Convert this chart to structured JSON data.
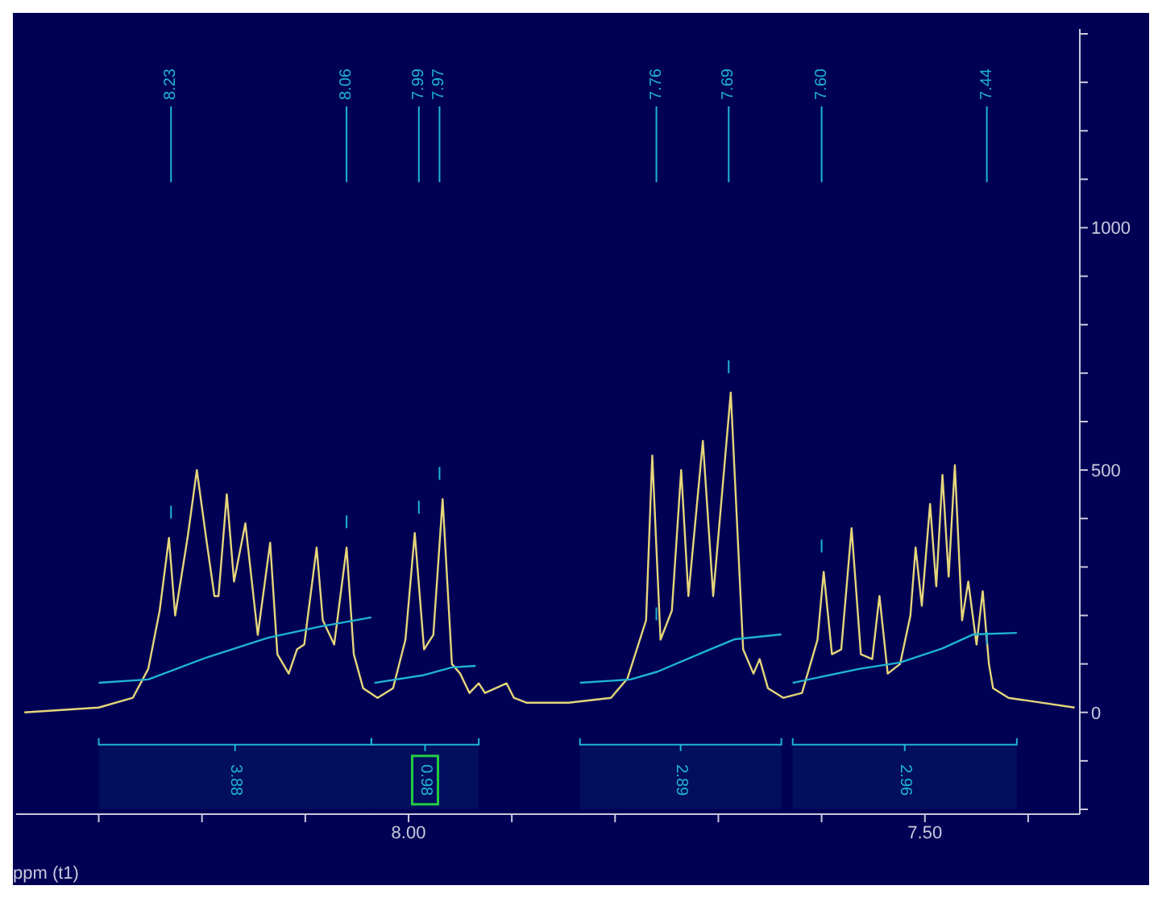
{
  "chart_data": {
    "type": "line",
    "xlabel": "ppm (t1)",
    "xlim": [
      8.38,
      7.35
    ],
    "ylim": [
      -210,
      1410
    ],
    "xticks": [
      {
        "value": 8.3,
        "label": null
      },
      {
        "value": 8.2,
        "label": null
      },
      {
        "value": 8.1,
        "label": null
      },
      {
        "value": 8,
        "label": "8.00"
      },
      {
        "value": 7.9,
        "label": null
      },
      {
        "value": 7.8,
        "label": null
      },
      {
        "value": 7.7,
        "label": null
      },
      {
        "value": 7.6,
        "label": null
      },
      {
        "value": 7.5,
        "label": "7.50"
      },
      {
        "value": 7.4,
        "label": null
      }
    ],
    "yticks": [
      {
        "value": -200,
        "label": null
      },
      {
        "value": -100,
        "label": null
      },
      0,
      {
        "value": 100,
        "label": null
      },
      {
        "value": 200,
        "label": null
      },
      {
        "value": 300,
        "label": null
      },
      {
        "value": 400,
        "label": null
      },
      500,
      {
        "value": 600,
        "label": null
      },
      {
        "value": 700,
        "label": null
      },
      {
        "value": 800,
        "label": null
      },
      {
        "value": 900,
        "label": null
      },
      1000,
      {
        "value": 1100,
        "label": null
      },
      {
        "value": 1200,
        "label": null
      },
      {
        "value": 1300,
        "label": null
      },
      {
        "value": 1400,
        "label": null
      }
    ],
    "grid": false,
    "marker": "none",
    "line_style": "solid",
    "series": [
      {
        "color": "#e6d67a",
        "x": [
          8.372,
          8.3,
          8.267,
          8.252,
          8.241,
          8.232,
          8.226,
          8.214,
          8.205,
          8.196,
          8.188,
          8.184,
          8.176,
          8.169,
          8.158,
          8.146,
          8.134,
          8.127,
          8.116,
          8.108,
          8.101,
          8.089,
          8.083,
          8.072,
          8.06,
          8.053,
          8.044,
          8.03,
          8.015,
          8.003,
          7.994,
          7.985,
          7.976,
          7.967,
          7.958,
          7.95,
          7.941,
          7.932,
          7.926,
          7.905,
          7.898,
          7.886,
          7.845,
          7.804,
          7.788,
          7.77,
          7.764,
          7.756,
          7.745,
          7.736,
          7.729,
          7.715,
          7.705,
          7.688,
          7.676,
          7.666,
          7.66,
          7.652,
          7.637,
          7.619,
          7.604,
          7.598,
          7.59,
          7.581,
          7.571,
          7.562,
          7.551,
          7.544,
          7.536,
          7.524,
          7.514,
          7.509,
          7.503,
          7.495,
          7.489,
          7.483,
          7.477,
          7.471,
          7.464,
          7.458,
          7.45,
          7.444,
          7.438,
          7.434,
          7.419,
          7.355
        ],
        "values": [
          0,
          10,
          30,
          90,
          210,
          360,
          200,
          360,
          500,
          360,
          240,
          240,
          450,
          270,
          390,
          160,
          350,
          120,
          80,
          130,
          140,
          340,
          190,
          140,
          340,
          120,
          50,
          30,
          50,
          150,
          370,
          130,
          160,
          440,
          100,
          80,
          40,
          60,
          40,
          60,
          30,
          20,
          20,
          30,
          70,
          190,
          530,
          150,
          210,
          500,
          240,
          560,
          240,
          660,
          130,
          80,
          110,
          50,
          30,
          40,
          150,
          290,
          120,
          130,
          380,
          120,
          110,
          240,
          80,
          100,
          200,
          340,
          220,
          430,
          260,
          490,
          280,
          510,
          190,
          270,
          140,
          250,
          100,
          50,
          30,
          10
        ]
      },
      {
        "color": "#1fb4d2",
        "x": [
          8.3,
          8.252,
          8.196,
          8.136,
          8.086,
          8.036
        ],
        "values": [
          61,
          68,
          113,
          154,
          177,
          196
        ]
      },
      {
        "color": "#1fb4d2",
        "x": [
          8.033,
          7.985,
          7.958,
          7.935
        ],
        "values": [
          61,
          77,
          93,
          96
        ]
      },
      {
        "color": "#1fb4d2",
        "x": [
          7.834,
          7.785,
          7.759,
          7.709,
          7.684,
          7.639
        ],
        "values": [
          61,
          68,
          84,
          129,
          151,
          161
        ]
      },
      {
        "color": "#1fb4d2",
        "x": [
          7.628,
          7.563,
          7.524,
          7.483,
          7.453,
          7.411
        ],
        "values": [
          61,
          90,
          103,
          132,
          161,
          164
        ]
      }
    ],
    "ref_lines": [
      {
        "axis": "x",
        "value": 8.23,
        "label": "8.23",
        "color": "#1fb4d2"
      },
      {
        "axis": "x",
        "value": 8.06,
        "label": "8.06",
        "color": "#1fb4d2"
      },
      {
        "axis": "x",
        "value": 7.99,
        "label": "7.99",
        "color": "#1fb4d2"
      },
      {
        "axis": "x",
        "value": 7.97,
        "label": "7.97",
        "color": "#1fb4d2"
      },
      {
        "axis": "x",
        "value": 7.76,
        "label": "7.76",
        "color": "#1fb4d2"
      },
      {
        "axis": "x",
        "value": 7.69,
        "label": "7.69",
        "color": "#1fb4d2"
      },
      {
        "axis": "x",
        "value": 7.6,
        "label": "7.60",
        "color": "#1fb4d2"
      },
      {
        "axis": "x",
        "value": 7.44,
        "label": "7.44",
        "color": "#1fb4d2"
      }
    ],
    "bands": [
      {
        "axis": "x",
        "from": 8.3,
        "to": 8.036,
        "label": "3.88",
        "color": "#1fb4d2"
      },
      {
        "axis": "x",
        "from": 8.036,
        "to": 7.932,
        "label": "0.98",
        "color": "#1fb4d2"
      },
      {
        "axis": "x",
        "from": 7.834,
        "to": 7.639,
        "label": "2.89",
        "color": "#1fb4d2"
      },
      {
        "axis": "x",
        "from": 7.628,
        "to": 7.411,
        "label": "2.96",
        "color": "#1fb4d2"
      }
    ]
  }
}
